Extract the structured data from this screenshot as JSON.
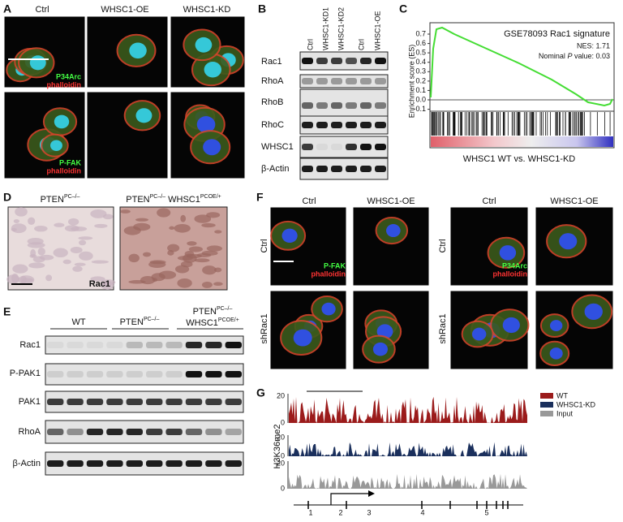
{
  "panel_a": {
    "label": "A",
    "columns": [
      "Ctrl",
      "WHSC1-OE",
      "WHSC1-KD"
    ],
    "row1_stain": [
      "P34Arc",
      "phalloidin"
    ],
    "row2_stain": [
      "P-FAK",
      "phalloidin"
    ]
  },
  "panel_b": {
    "label": "B",
    "lanes": [
      "Ctrl",
      "WHSC1-KD1",
      "WHSC1-KD2",
      "Ctrl",
      "WHSC1-OE"
    ],
    "rows": [
      "Rac1",
      "RhoA",
      "RhoB",
      "RhoC",
      "WHSC1",
      "β-Actin"
    ]
  },
  "panel_c": {
    "label": "C",
    "y_label": "Enrichment score (ES)",
    "yticks": [
      "0.7",
      "0.6",
      "0.5",
      "0.4",
      "0.3",
      "0.2",
      "0.1",
      "0.0",
      "-0.1"
    ],
    "title": "GSE78093 Rac1 signature",
    "nes": "NES: 1.71",
    "p_value": {
      "prefix": "Nominal ",
      "p": "P",
      "suffix": " value: 0.03"
    },
    "x_label": "WHSC1 WT vs. WHSC1-KD"
  },
  "panel_d": {
    "label": "D",
    "left": {
      "base": "PTEN",
      "sup": "PC–/–"
    },
    "right": {
      "base": "PTEN",
      "sup": "PC–/–",
      "base2": " WHSC1",
      "sup2": "PCOE/+"
    },
    "stain": "Rac1"
  },
  "panel_e": {
    "label": "E",
    "groups": [
      {
        "base": "WT"
      },
      {
        "base": "PTEN",
        "sup": "PC–/–"
      },
      {
        "base": "PTEN",
        "sup": "PC–/–",
        "base2": "WHSC1",
        "sup2": "PCOE/+"
      }
    ],
    "rows": [
      "Rac1",
      "P-PAK1",
      "PAK1",
      "RhoA",
      "β-Actin"
    ]
  },
  "panel_f": {
    "label": "F",
    "columns": [
      "Ctrl",
      "WHSC1-OE",
      "Ctrl",
      "WHSC1-OE"
    ],
    "rows": [
      "Ctrl",
      "shRac1"
    ],
    "left_stain": [
      "P-FAK",
      "phalloidin"
    ],
    "right_stain": [
      "P34Arc",
      "phalloidin"
    ]
  },
  "panel_g": {
    "label": "G",
    "y_label": "H3K36me2",
    "track_ticks": [
      "20",
      "0"
    ],
    "legend": [
      "WT",
      "WHSC1-KD",
      "Input"
    ],
    "exons": [
      "1",
      "2",
      "3",
      "4",
      "5"
    ]
  }
}
